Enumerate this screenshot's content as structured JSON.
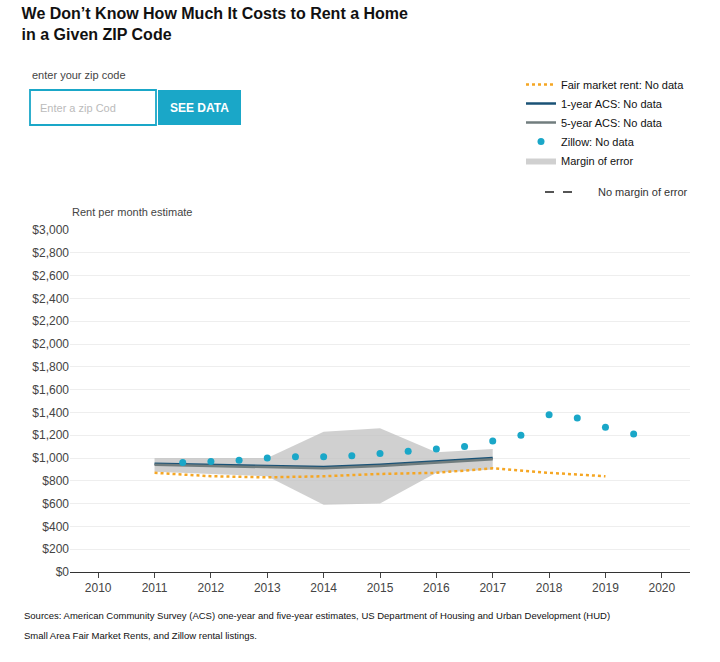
{
  "chart_data": {
    "type": "line",
    "title": [
      "We Don’t Know How Much It Costs to Rent a Home",
      "in a Given ZIP Code"
    ],
    "subtitle": "Rent per month estimate",
    "series": [
      {
        "name": "Fair market rent: No data",
        "color": "#f5a623",
        "line_style": "dotted",
        "x": [
          2011,
          2012,
          2013,
          2014,
          2015,
          2016,
          2017,
          2018,
          2019
        ],
        "values": [
          870,
          840,
          830,
          840,
          860,
          870,
          910,
          870,
          840
        ]
      },
      {
        "name": "1-year ACS: No data",
        "color": "#1a5276",
        "line_style": "solid",
        "x": [
          2011,
          2012,
          2013,
          2014,
          2015,
          2016,
          2017
        ],
        "values": [
          950,
          940,
          930,
          920,
          940,
          970,
          1000
        ]
      },
      {
        "name": "5-year ACS: No data",
        "color": "#717d7e",
        "line_style": "solid",
        "x": [
          2011,
          2012,
          2013,
          2014,
          2015,
          2016,
          2017
        ],
        "values": [
          940,
          930,
          920,
          910,
          930,
          960,
          990
        ],
        "band": {
          "name": "Margin of error",
          "color": "#c0c0c0",
          "lower": [
            880,
            860,
            840,
            590,
            600,
            870,
            900
          ],
          "upper": [
            1000,
            1000,
            1000,
            1230,
            1260,
            1050,
            1080
          ]
        }
      },
      {
        "name": "Zillow: No data",
        "color": "#1aa7c8",
        "type": "scatter",
        "marker": "circle",
        "x": [
          2011.5,
          2012.0,
          2012.5,
          2013.0,
          2013.5,
          2014.0,
          2014.5,
          2015.0,
          2015.5,
          2016.0,
          2016.5,
          2017.0,
          2017.5,
          2018.0,
          2018.5,
          2019.0,
          2019.5
        ],
        "values": [
          960,
          970,
          980,
          1000,
          1010,
          1010,
          1020,
          1040,
          1060,
          1080,
          1100,
          1150,
          1200,
          1380,
          1350,
          1270,
          1210
        ]
      }
    ],
    "xlim": [
      2009.5,
      2020.5
    ],
    "xticks": [
      2010,
      2011,
      2012,
      2013,
      2014,
      2015,
      2016,
      2017,
      2018,
      2019,
      2020
    ],
    "ylim": [
      0,
      3000
    ],
    "yticks": [
      {
        "value": 0,
        "label": "$0"
      },
      {
        "value": 200,
        "label": "$200"
      },
      {
        "value": 400,
        "label": "$400"
      },
      {
        "value": 600,
        "label": "$600"
      },
      {
        "value": 800,
        "label": "$800"
      },
      {
        "value": 1000,
        "label": "$1,000"
      },
      {
        "value": 1200,
        "label": "$1,200"
      },
      {
        "value": 1400,
        "label": "$1,400"
      },
      {
        "value": 1600,
        "label": "$1,600"
      },
      {
        "value": 1800,
        "label": "$1,800"
      },
      {
        "value": 2000,
        "label": "$2,000"
      },
      {
        "value": 2200,
        "label": "$2,200"
      },
      {
        "value": 2400,
        "label": "$2,400"
      },
      {
        "value": 2600,
        "label": "$2,600"
      },
      {
        "value": 2800,
        "label": "$2,800"
      },
      {
        "value": 3000,
        "label": "$3,000"
      }
    ],
    "grid": true,
    "legend": "upper right",
    "annotations": [
      "No margin of error",
      "enter your zip code",
      "Enter a zip Cod",
      "SEE DATA",
      "Sources: American Community Survey (ACS) one-year and five-year estimates, US Department of Housing and Urban Development (HUD)",
      "Small Area Fair Market Rents, and Zillow rental listings."
    ]
  }
}
